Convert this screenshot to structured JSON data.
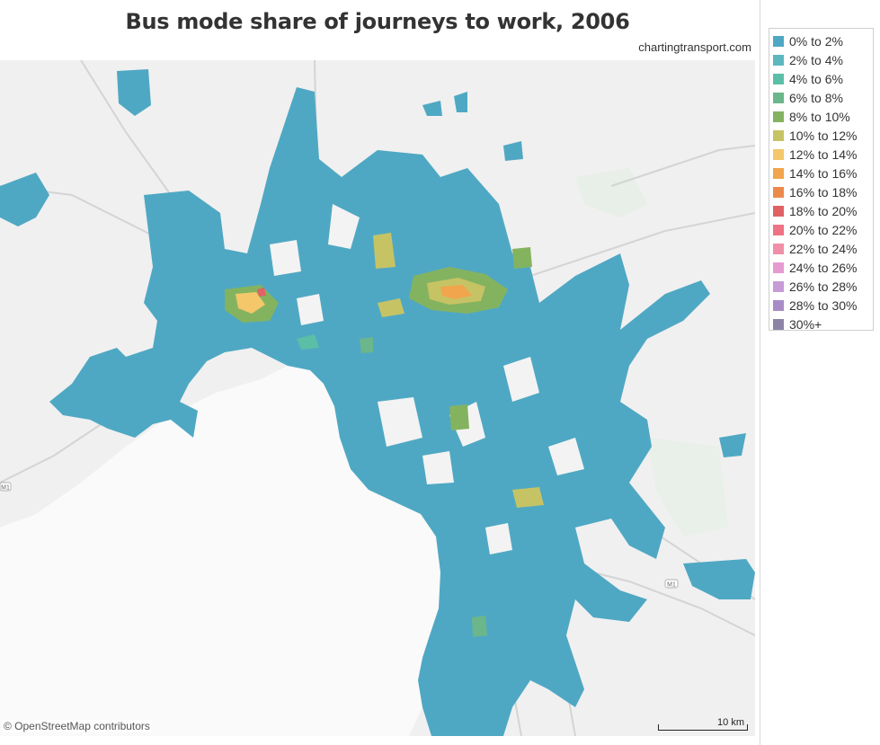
{
  "title": "Bus mode share of journeys to work, 2006",
  "credit": "chartingtransport.com",
  "attribution": "© OpenStreetMap contributors",
  "scale_label": "10 km",
  "road_shields": [
    "M1",
    "M1"
  ],
  "legend": {
    "items": [
      {
        "label": "0% to 2%",
        "color": "#4fa8c3"
      },
      {
        "label": "2% to 4%",
        "color": "#5cb8be"
      },
      {
        "label": "4% to 6%",
        "color": "#5bbfa7"
      },
      {
        "label": "6% to 8%",
        "color": "#6bb68a"
      },
      {
        "label": "8% to 10%",
        "color": "#84b360"
      },
      {
        "label": "10% to 12%",
        "color": "#c6c365"
      },
      {
        "label": "12% to 14%",
        "color": "#f3c76a"
      },
      {
        "label": "14% to 16%",
        "color": "#f1a54c"
      },
      {
        "label": "16% to 18%",
        "color": "#ec8a4c"
      },
      {
        "label": "18% to 20%",
        "color": "#e06265"
      },
      {
        "label": "20% to 22%",
        "color": "#ef7384"
      },
      {
        "label": "22% to 24%",
        "color": "#f08fa8"
      },
      {
        "label": "24% to 26%",
        "color": "#e79ad0"
      },
      {
        "label": "26% to 28%",
        "color": "#c79ad8"
      },
      {
        "label": "28% to 30%",
        "color": "#a88cc7"
      },
      {
        "label": "30%+",
        "color": "#8d83a6"
      }
    ]
  }
}
